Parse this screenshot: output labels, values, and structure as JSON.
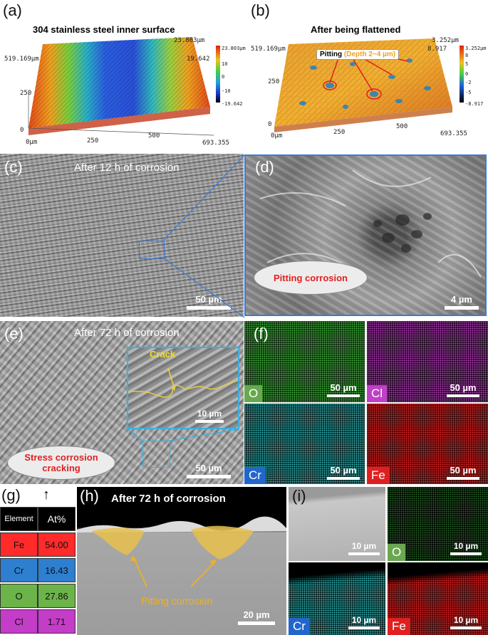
{
  "panels": {
    "a": {
      "label": "(a)",
      "title": "304 stainless steel inner surface",
      "z_top": "23.803µm",
      "z_mid": "19.642",
      "y_top": "519.169µm",
      "y_mid": "250",
      "y_zero": "0",
      "x_zero": "0µm",
      "x_250": "250",
      "x_500": "500",
      "x_end": "693.355",
      "colorbar": [
        "23.803µm",
        "10",
        "0",
        "-10",
        "-19.642"
      ]
    },
    "b": {
      "label": "(b)",
      "title": "After being flattened",
      "z_top": "3.252µm",
      "z_mid": "8.917",
      "y_top": "519.169µm",
      "y_mid": "250",
      "y_zero": "0",
      "x_zero": "0µm",
      "x_250": "250",
      "x_500": "500",
      "x_end": "693.355",
      "pitting": "Pitting",
      "depth": "(Depth 2~4 µm)",
      "colorbar": [
        "3.252µm",
        "8",
        "5",
        "0",
        "-2",
        "-5",
        "-8.917"
      ]
    },
    "c": {
      "label": "(c)",
      "title": "After 12 h of corrosion",
      "scale": "50 µm"
    },
    "d": {
      "label": "(d)",
      "callout": "Pitting corrosion",
      "scale": "4 µm"
    },
    "e": {
      "label": "(e)",
      "title": "After 72 h of corrosion",
      "crack": "Crack",
      "inset_scale": "10 µm",
      "callout": "Stress corrosion cracking",
      "scale": "50 µm"
    },
    "f": {
      "label": "(f)",
      "maps": [
        {
          "el": "O",
          "scale": "50 µm",
          "color": "#3ea83a",
          "badge": "#6aa84f"
        },
        {
          "el": "Cl",
          "scale": "50 µm",
          "color": "#b43fb8",
          "badge": "#c040c8"
        },
        {
          "el": "Cr",
          "scale": "50 µm",
          "color": "#2ea8a8",
          "badge": "#2266cc"
        },
        {
          "el": "Fe",
          "scale": "50 µm",
          "color": "#d42020",
          "badge": "#e02020"
        }
      ]
    },
    "g": {
      "label": "(g)",
      "arrow": "↑",
      "headers": [
        "Element",
        "At%"
      ],
      "rows": [
        {
          "el": "Fe",
          "val": "54.00",
          "color": "#ff2a2a"
        },
        {
          "el": "Cr",
          "val": "16.43",
          "color": "#2e7fd0"
        },
        {
          "el": "O",
          "val": "27.86",
          "color": "#6cb34a"
        },
        {
          "el": "Cl",
          "val": "1.71",
          "color": "#c43dc8"
        }
      ]
    },
    "h": {
      "label": "(h)",
      "title": "After 72 h of corrosion",
      "callout": "Pitting corrosion",
      "scale": "20 µm"
    },
    "i": {
      "label": "(i)",
      "maps": [
        {
          "el": "",
          "scale": "10 µm"
        },
        {
          "el": "O",
          "scale": "10 µm",
          "badge": "#6aa84f"
        },
        {
          "el": "Cr",
          "scale": "10 µm",
          "badge": "#2266cc"
        },
        {
          "el": "Fe",
          "scale": "10 µm",
          "badge": "#e02020"
        }
      ]
    }
  }
}
